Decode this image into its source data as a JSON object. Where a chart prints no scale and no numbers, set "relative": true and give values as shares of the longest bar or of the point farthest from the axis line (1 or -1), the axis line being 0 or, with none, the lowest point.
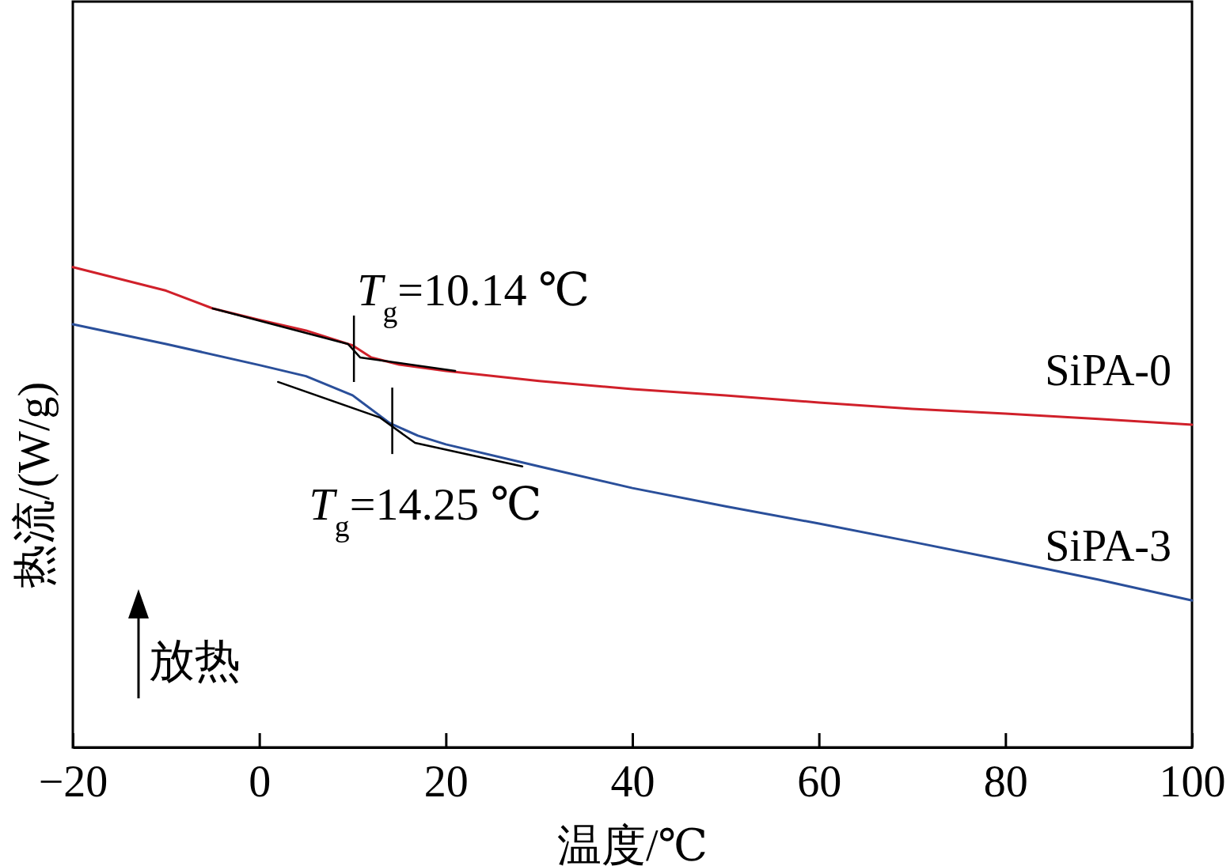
{
  "chart_data": {
    "type": "line",
    "relative": true,
    "xlabel": "温度/℃",
    "ylabel": "热流/(W/g)",
    "xlim": [
      -20,
      100
    ],
    "xticks": [
      {
        "value": -20,
        "label": "−20"
      },
      0,
      20,
      40,
      60,
      80,
      100
    ],
    "series": [
      {
        "name": "SiPA-0",
        "color": "#d0202a",
        "x": [
          -20,
          -10,
          -5,
          0,
          5,
          10,
          12,
          15,
          20,
          30,
          40,
          50,
          60,
          70,
          80,
          90,
          100
        ],
        "values": [
          1,
          0.951,
          0.914,
          0.89,
          0.868,
          0.837,
          0.812,
          0.797,
          0.784,
          0.763,
          0.746,
          0.733,
          0.718,
          0.705,
          0.695,
          0.684,
          0.672
        ]
      },
      {
        "name": "SiPA-3",
        "color": "#2a4f9a",
        "x": [
          -20,
          -10,
          0,
          5,
          10,
          14,
          17,
          20,
          30,
          40,
          50,
          60,
          70,
          80,
          90,
          100
        ],
        "values": [
          0.881,
          0.84,
          0.796,
          0.773,
          0.733,
          0.675,
          0.649,
          0.631,
          0.585,
          0.54,
          0.502,
          0.466,
          0.428,
          0.389,
          0.349,
          0.306
        ]
      },
      {
        "color": "#000000",
        "x": [
          -5,
          9.5,
          10.8,
          21
        ],
        "values": [
          0.914,
          0.84,
          0.812,
          0.784
        ]
      },
      {
        "color": "#000000",
        "x": [
          2,
          12.9,
          16.7,
          28.2
        ],
        "values": [
          0.761,
          0.687,
          0.634,
          0.585
        ]
      }
    ],
    "annotations": [
      {
        "text": "T$_{g}$=10.14 ℃",
        "x": 10.14,
        "y": 0.83
      },
      {
        "text": "T$_{g}$=14.25 ℃",
        "x": 14.25,
        "y": 0.68
      },
      "放热"
    ]
  }
}
